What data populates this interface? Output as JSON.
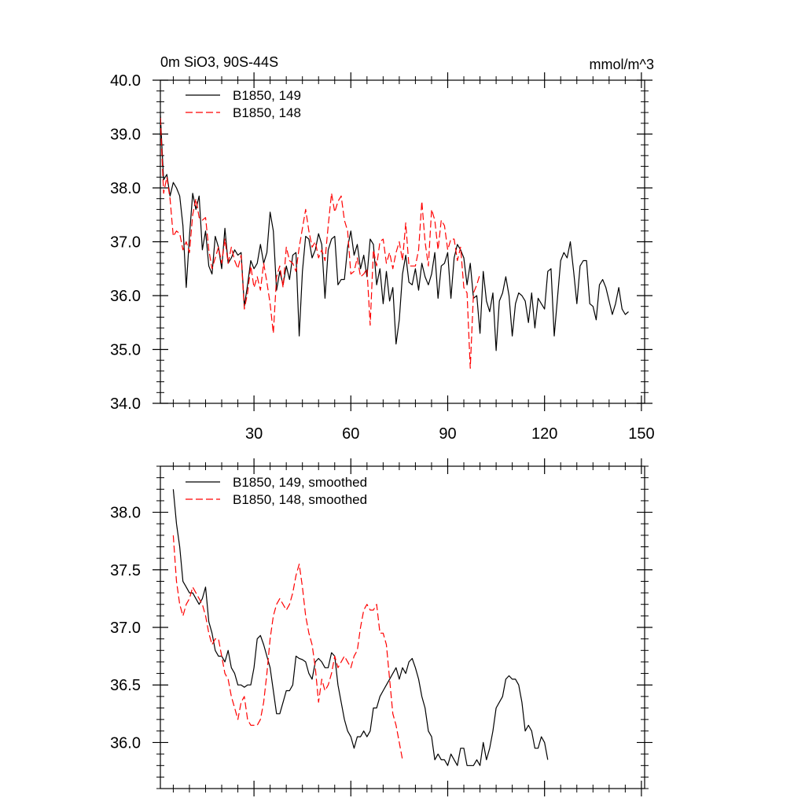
{
  "figure": {
    "title_left": "0m SiO3, 90S-44S",
    "title_right": "mmol/m^3"
  },
  "chart_data": [
    {
      "type": "line",
      "title": "0m SiO3, 90S-44S",
      "units": "mmol/m^3",
      "xlabel": "",
      "ylabel": "",
      "xlim": [
        1,
        151
      ],
      "ylim": [
        34.0,
        40.0
      ],
      "x_ticks": [
        30,
        60,
        90,
        120,
        150
      ],
      "y_ticks": [
        34.0,
        35.0,
        36.0,
        37.0,
        38.0,
        39.0,
        40.0
      ],
      "y_tick_labels": [
        "34.0",
        "35.0",
        "36.0",
        "37.0",
        "38.0",
        "39.0",
        "40.0"
      ],
      "legend_position": "top-left",
      "series": [
        {
          "name": "B1850, 149",
          "color": "#000000",
          "dash": "solid",
          "x_start": 1,
          "values": [
            39.35,
            38.15,
            38.25,
            37.85,
            38.1,
            38.0,
            37.85,
            37.3,
            36.15,
            37.1,
            37.9,
            37.6,
            37.85,
            36.85,
            37.2,
            36.55,
            36.4,
            37.1,
            36.9,
            36.5,
            37.25,
            36.6,
            36.7,
            36.85,
            36.75,
            36.8,
            35.8,
            36.2,
            36.65,
            36.5,
            36.6,
            36.95,
            36.6,
            36.8,
            37.55,
            37.2,
            36.1,
            36.45,
            36.2,
            36.55,
            36.3,
            36.75,
            36.8,
            35.25,
            36.45,
            37.1,
            37.05,
            36.7,
            36.85,
            37.15,
            36.95,
            35.95,
            36.85,
            37.05,
            37.1,
            36.2,
            36.3,
            36.3,
            36.9,
            37.2,
            36.75,
            36.95,
            36.5,
            36.75,
            36.35,
            37.05,
            36.95,
            36.2,
            36.5,
            35.85,
            36.45,
            35.9,
            36.15,
            35.1,
            35.55,
            36.4,
            36.75,
            36.25,
            36.2,
            36.5,
            36.1,
            36.6,
            36.35,
            36.2,
            36.4,
            36.8,
            35.95,
            36.55,
            36.6,
            36.8,
            35.95,
            36.7,
            36.95,
            36.85,
            36.7,
            36.2,
            36.6,
            35.95,
            36.0,
            35.3,
            36.45,
            35.9,
            35.7,
            36.05,
            34.98,
            35.9,
            36.05,
            36.35,
            36.0,
            35.25,
            35.85,
            36.05,
            36.0,
            35.9,
            35.5,
            36.05,
            35.4,
            35.95,
            35.85,
            35.75,
            36.45,
            36.5,
            35.25,
            35.95,
            36.65,
            36.8,
            36.7,
            37.0,
            36.45,
            35.85,
            36.55,
            36.65,
            36.65,
            35.85,
            35.8,
            35.55,
            36.2,
            36.3,
            36.15,
            35.9,
            35.65,
            35.85,
            36.15,
            35.75,
            35.65,
            35.7
          ]
        },
        {
          "name": "B1850, 148",
          "color": "#ff0000",
          "dash": "dashed",
          "x_start": 1,
          "values": [
            39.3,
            37.9,
            38.2,
            37.8,
            37.1,
            37.2,
            37.15,
            36.85,
            37.0,
            36.8,
            37.5,
            37.8,
            37.45,
            37.4,
            37.45,
            36.85,
            36.5,
            36.7,
            36.9,
            36.6,
            37.05,
            36.6,
            36.9,
            36.65,
            36.5,
            36.75,
            35.75,
            36.05,
            36.55,
            36.15,
            36.35,
            36.1,
            36.6,
            36.25,
            35.85,
            35.3,
            36.35,
            36.55,
            36.15,
            36.9,
            36.65,
            36.6,
            36.45,
            36.9,
            37.25,
            37.6,
            37.2,
            36.9,
            37.0,
            36.7,
            36.85,
            36.65,
            37.3,
            37.9,
            37.55,
            37.75,
            37.85,
            37.4,
            37.2,
            36.4,
            36.45,
            36.7,
            36.35,
            36.4,
            36.5,
            35.45,
            36.85,
            36.55,
            37.0,
            37.05,
            36.6,
            36.8,
            36.5,
            36.8,
            37.0,
            36.65,
            37.35,
            36.55,
            36.55,
            36.55,
            36.85,
            37.75,
            37.0,
            36.55,
            37.6,
            37.4,
            36.85,
            37.4,
            37.3,
            36.85,
            37.05,
            37.05,
            36.65,
            36.9,
            36.15,
            36.05,
            34.65,
            36.05,
            36.2,
            36.4
          ]
        }
      ]
    },
    {
      "type": "line",
      "title": "",
      "xlabel": "",
      "ylabel": "",
      "xlim": [
        1,
        151
      ],
      "ylim": [
        35.6,
        38.4
      ],
      "x_ticks": [
        30,
        60,
        90,
        120,
        150
      ],
      "y_ticks": [
        36.0,
        36.5,
        37.0,
        37.5,
        38.0
      ],
      "y_tick_labels": [
        "36.0",
        "36.5",
        "37.0",
        "37.5",
        "38.0"
      ],
      "legend_position": "top-left",
      "series": [
        {
          "name": "B1850, 149, smoothed",
          "color": "#000000",
          "dash": "solid",
          "x_start": 5,
          "values": [
            38.2,
            37.9,
            37.7,
            37.4,
            37.35,
            37.3,
            37.3,
            37.25,
            37.2,
            37.25,
            37.35,
            37.05,
            36.95,
            36.8,
            36.75,
            36.75,
            36.7,
            36.8,
            36.65,
            36.6,
            36.5,
            36.5,
            36.48,
            36.5,
            36.5,
            36.65,
            36.9,
            36.93,
            36.85,
            36.75,
            36.65,
            36.45,
            36.25,
            36.25,
            36.35,
            36.45,
            36.45,
            36.5,
            36.75,
            36.73,
            36.72,
            36.7,
            36.6,
            36.55,
            36.7,
            36.73,
            36.7,
            36.65,
            36.65,
            36.78,
            36.75,
            36.5,
            36.35,
            36.2,
            36.1,
            36.05,
            35.95,
            36.05,
            36.05,
            36.1,
            36.05,
            36.1,
            36.3,
            36.3,
            36.4,
            36.45,
            36.5,
            36.55,
            36.6,
            36.65,
            36.55,
            36.65,
            36.6,
            36.7,
            36.73,
            36.65,
            36.55,
            36.4,
            36.3,
            36.1,
            36.05,
            35.85,
            35.9,
            35.85,
            35.85,
            35.8,
            35.9,
            35.85,
            35.8,
            35.95,
            35.95,
            35.8,
            35.8,
            35.8,
            35.85,
            35.8,
            36.0,
            35.85,
            35.95,
            36.1,
            36.3,
            36.35,
            36.4,
            36.55,
            36.58,
            36.55,
            36.55,
            36.5,
            36.35,
            36.1,
            36.15,
            36.1,
            35.95,
            35.95,
            36.05,
            36.0,
            35.85
          ]
        },
        {
          "name": "B1850, 148, smoothed",
          "color": "#ff0000",
          "dash": "dashed",
          "x_start": 5,
          "values": [
            37.8,
            37.4,
            37.2,
            37.1,
            37.2,
            37.25,
            37.35,
            37.3,
            37.25,
            37.2,
            37.1,
            36.95,
            36.85,
            36.9,
            36.9,
            36.75,
            36.6,
            36.55,
            36.4,
            36.3,
            36.2,
            36.35,
            36.4,
            36.2,
            36.15,
            36.15,
            36.15,
            36.2,
            36.35,
            36.6,
            36.9,
            37.1,
            37.2,
            37.25,
            37.2,
            37.15,
            37.2,
            37.3,
            37.45,
            37.55,
            37.35,
            37.1,
            36.95,
            36.85,
            36.65,
            36.35,
            36.55,
            36.45,
            36.5,
            36.6,
            36.75,
            36.65,
            36.7,
            36.75,
            36.7,
            36.65,
            36.75,
            36.8,
            37.0,
            37.15,
            37.2,
            37.15,
            37.15,
            37.2,
            36.95,
            36.95,
            36.85,
            36.55,
            36.25,
            36.15,
            36.0,
            35.85
          ]
        }
      ]
    }
  ]
}
